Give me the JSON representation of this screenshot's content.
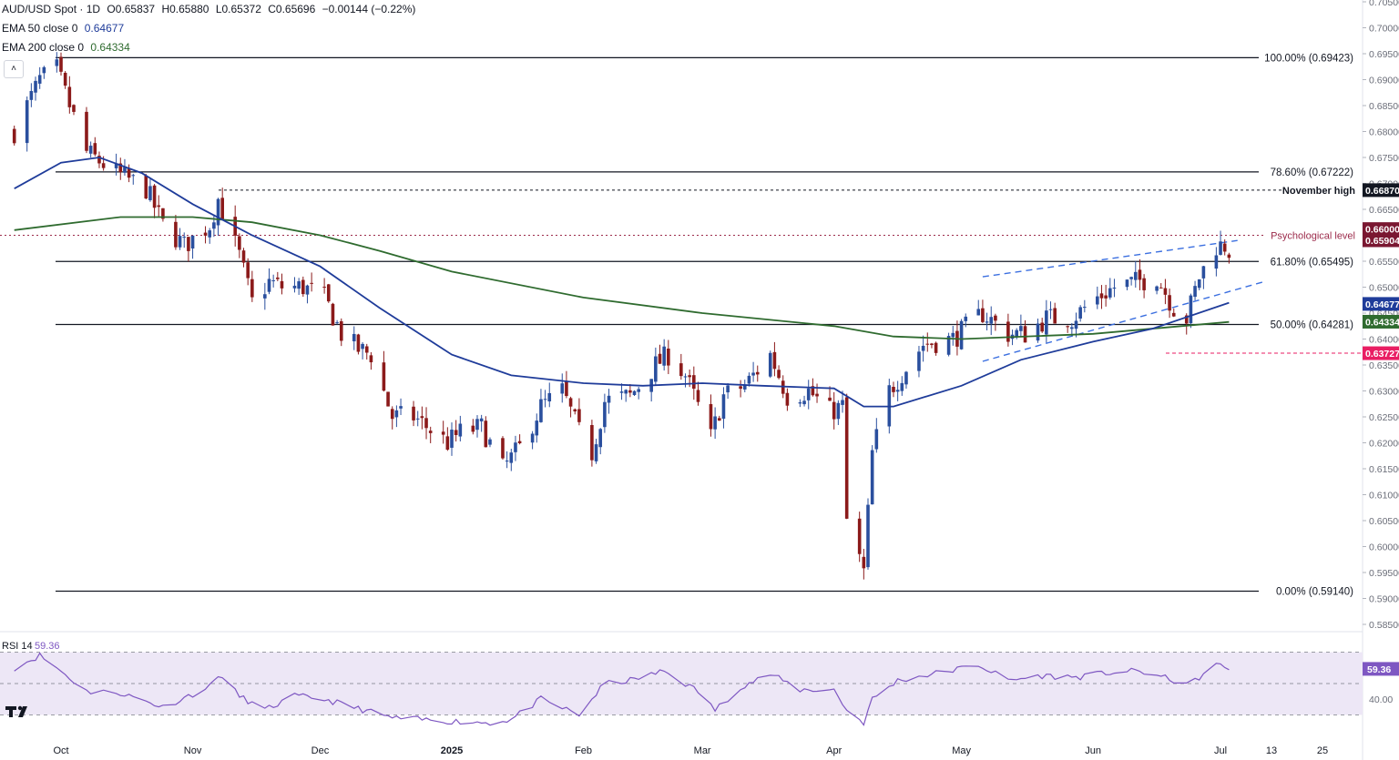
{
  "header": {
    "symbol": "AUD/USD Spot · 1D",
    "open": "O0.65837",
    "high": "H0.65880",
    "low": "L0.65372",
    "close": "C0.65696",
    "change": "−0.00144 (−0.22%)",
    "ema50_label": "EMA 50 close 0",
    "ema50_value": "0.64677",
    "ema200_label": "EMA 200 close 0",
    "ema200_value": "0.64334",
    "collapse_glyph": "˄"
  },
  "colors": {
    "up": "#2a4f9e",
    "down": "#8b1a1a",
    "ema50": "#1f3c9a",
    "ema200": "#2f6b2f",
    "psych": "#9c2b4b",
    "trend": "#3b6fe0",
    "rsi_line": "#7e57c2",
    "rsi_band": "#ede7f6",
    "badge_black": "#131722",
    "badge_maroon": "#7a1731",
    "badge_pink": "#e91e63"
  },
  "icons": {
    "logo": "tradingview-logo-icon"
  },
  "chart_data": {
    "type": "candlestick",
    "ylim": [
      0.585,
      0.705
    ],
    "y_ticks": [
      "0.70500",
      "0.70000",
      "0.69500",
      "0.69000",
      "0.68500",
      "0.68000",
      "0.67500",
      "0.67000",
      "0.66500",
      "0.66000",
      "0.65500",
      "0.65000",
      "0.64500",
      "0.64000",
      "0.63500",
      "0.63000",
      "0.62500",
      "0.62000",
      "0.61500",
      "0.61000",
      "0.60500",
      "0.60000",
      "0.59500",
      "0.59000",
      "0.58500"
    ],
    "x_labels": [
      "Oct",
      "Nov",
      "Dec",
      "2025",
      "Feb",
      "Mar",
      "Apr",
      "May",
      "Jun",
      "Jul",
      "13",
      "25"
    ],
    "fib_levels": [
      {
        "label": "100.00% (0.69423)",
        "value": 0.69423
      },
      {
        "label": "78.60% (0.67222)",
        "value": 0.67222
      },
      {
        "label": "61.80% (0.65495)",
        "value": 0.65495
      },
      {
        "label": "50.00% (0.64281)",
        "value": 0.64281
      },
      {
        "label": "0.00% (0.59140)",
        "value": 0.5914
      }
    ],
    "november_high": {
      "label": "November high",
      "value": 0.6687,
      "badge": "0.66870"
    },
    "psychological_level": {
      "label": "Psychological level",
      "value": 0.66,
      "badge": "0.66000"
    },
    "support_dashed": {
      "value": 0.63727,
      "badge": "0.63727"
    },
    "price_badges": [
      {
        "value": "0.65904",
        "y": 0.65904,
        "color": "maroon"
      },
      {
        "value": "0.64677",
        "y": 0.64677,
        "color": "ema50"
      },
      {
        "value": "0.64334",
        "y": 0.64334,
        "color": "ema200"
      }
    ],
    "channel_upper": [
      {
        "t": "2025-05-06",
        "y": 0.652
      },
      {
        "t": "2025-07-05",
        "y": 0.659
      }
    ],
    "channel_lower": [
      {
        "t": "2025-05-06",
        "y": 0.6357
      },
      {
        "t": "2025-07-11",
        "y": 0.651
      }
    ],
    "price_keypoints": [
      [
        "2024-09-20",
        0.68
      ],
      [
        "2024-09-26",
        0.69
      ],
      [
        "2024-09-30",
        0.692
      ],
      [
        "2024-10-03",
        0.685
      ],
      [
        "2024-10-07",
        0.676
      ],
      [
        "2024-10-14",
        0.672
      ],
      [
        "2024-10-21",
        0.669
      ],
      [
        "2024-10-25",
        0.662
      ],
      [
        "2024-10-30",
        0.658
      ],
      [
        "2024-11-05",
        0.662
      ],
      [
        "2024-11-07",
        0.667
      ],
      [
        "2024-11-12",
        0.656
      ],
      [
        "2024-11-15",
        0.647
      ],
      [
        "2024-11-19",
        0.651
      ],
      [
        "2024-11-22",
        0.65
      ],
      [
        "2024-11-27",
        0.65
      ],
      [
        "2024-12-02",
        0.648
      ],
      [
        "2024-12-06",
        0.641
      ],
      [
        "2024-12-10",
        0.638
      ],
      [
        "2024-12-13",
        0.637
      ],
      [
        "2024-12-18",
        0.625
      ],
      [
        "2024-12-23",
        0.625
      ],
      [
        "2024-12-31",
        0.62
      ],
      [
        "2025-01-03",
        0.622
      ],
      [
        "2025-01-08",
        0.623
      ],
      [
        "2025-01-13",
        0.615
      ],
      [
        "2025-01-17",
        0.619
      ],
      [
        "2025-01-22",
        0.627
      ],
      [
        "2025-01-27",
        0.63
      ],
      [
        "2025-01-31",
        0.622
      ],
      [
        "2025-02-03",
        0.618
      ],
      [
        "2025-02-06",
        0.628
      ],
      [
        "2025-02-12",
        0.629
      ],
      [
        "2025-02-18",
        0.635
      ],
      [
        "2025-02-21",
        0.637
      ],
      [
        "2025-02-25",
        0.633
      ],
      [
        "2025-03-03",
        0.621
      ],
      [
        "2025-03-06",
        0.629
      ],
      [
        "2025-03-11",
        0.631
      ],
      [
        "2025-03-17",
        0.637
      ],
      [
        "2025-03-21",
        0.629
      ],
      [
        "2025-03-26",
        0.63
      ],
      [
        "2025-03-31",
        0.626
      ],
      [
        "2025-04-03",
        0.627
      ],
      [
        "2025-04-04",
        0.605
      ],
      [
        "2025-04-08",
        0.595
      ],
      [
        "2025-04-10",
        0.618
      ],
      [
        "2025-04-14",
        0.63
      ],
      [
        "2025-04-22",
        0.639
      ],
      [
        "2025-04-29",
        0.64
      ],
      [
        "2025-05-06",
        0.645
      ],
      [
        "2025-05-12",
        0.641
      ],
      [
        "2025-05-16",
        0.641
      ],
      [
        "2025-05-21",
        0.644
      ],
      [
        "2025-05-27",
        0.644
      ],
      [
        "2025-06-02",
        0.648
      ],
      [
        "2025-06-06",
        0.65
      ],
      [
        "2025-06-11",
        0.651
      ],
      [
        "2025-06-16",
        0.652
      ],
      [
        "2025-06-20",
        0.646
      ],
      [
        "2025-06-23",
        0.644
      ],
      [
        "2025-06-26",
        0.652
      ],
      [
        "2025-06-30",
        0.658
      ],
      [
        "2025-07-02",
        0.658
      ],
      [
        "2025-07-03",
        0.657
      ]
    ],
    "ema50": [
      [
        "2024-09-20",
        0.669
      ],
      [
        "2024-10-01",
        0.674
      ],
      [
        "2024-10-10",
        0.675
      ],
      [
        "2024-10-20",
        0.672
      ],
      [
        "2024-11-01",
        0.666
      ],
      [
        "2024-11-15",
        0.66
      ],
      [
        "2024-12-01",
        0.654
      ],
      [
        "2024-12-15",
        0.646
      ],
      [
        "2025-01-01",
        0.637
      ],
      [
        "2025-01-15",
        0.633
      ],
      [
        "2025-02-01",
        0.6315
      ],
      [
        "2025-02-15",
        0.631
      ],
      [
        "2025-03-01",
        0.6315
      ],
      [
        "2025-03-15",
        0.631
      ],
      [
        "2025-04-01",
        0.6305
      ],
      [
        "2025-04-08",
        0.627
      ],
      [
        "2025-04-15",
        0.627
      ],
      [
        "2025-05-01",
        0.631
      ],
      [
        "2025-05-15",
        0.636
      ],
      [
        "2025-06-01",
        0.6395
      ],
      [
        "2025-06-15",
        0.642
      ],
      [
        "2025-07-03",
        0.647
      ]
    ],
    "ema200": [
      [
        "2024-09-20",
        0.661
      ],
      [
        "2024-10-15",
        0.6635
      ],
      [
        "2024-11-01",
        0.6635
      ],
      [
        "2024-11-15",
        0.6625
      ],
      [
        "2024-12-01",
        0.66
      ],
      [
        "2024-12-15",
        0.657
      ],
      [
        "2025-01-01",
        0.653
      ],
      [
        "2025-02-01",
        0.648
      ],
      [
        "2025-03-01",
        0.645
      ],
      [
        "2025-04-01",
        0.6425
      ],
      [
        "2025-04-15",
        0.6405
      ],
      [
        "2025-05-01",
        0.64
      ],
      [
        "2025-06-01",
        0.641
      ],
      [
        "2025-07-03",
        0.6433
      ]
    ],
    "rsi": {
      "label": "RSI 14",
      "value": "59.36",
      "tick_label": "40.00",
      "upper": 70,
      "mid": 50,
      "lower": 30,
      "ylim": [
        25,
        75
      ],
      "keypoints": [
        [
          "2024-09-20",
          60
        ],
        [
          "2024-09-26",
          68
        ],
        [
          "2024-10-01",
          58
        ],
        [
          "2024-10-07",
          45
        ],
        [
          "2024-10-15",
          44
        ],
        [
          "2024-10-25",
          35
        ],
        [
          "2024-11-05",
          48
        ],
        [
          "2024-11-07",
          56
        ],
        [
          "2024-11-12",
          42
        ],
        [
          "2024-11-18",
          33
        ],
        [
          "2024-11-25",
          42
        ],
        [
          "2024-12-02",
          40
        ],
        [
          "2024-12-10",
          34
        ],
        [
          "2024-12-18",
          28
        ],
        [
          "2024-12-31",
          26
        ],
        [
          "2025-01-10",
          25
        ],
        [
          "2025-01-15",
          27
        ],
        [
          "2025-01-22",
          40
        ],
        [
          "2025-01-31",
          30
        ],
        [
          "2025-02-06",
          50
        ],
        [
          "2025-02-12",
          52
        ],
        [
          "2025-02-20",
          58
        ],
        [
          "2025-02-28",
          45
        ],
        [
          "2025-03-04",
          33
        ],
        [
          "2025-03-10",
          48
        ],
        [
          "2025-03-17",
          56
        ],
        [
          "2025-03-24",
          46
        ],
        [
          "2025-04-01",
          46
        ],
        [
          "2025-04-04",
          33
        ],
        [
          "2025-04-08",
          25
        ],
        [
          "2025-04-10",
          40
        ],
        [
          "2025-04-16",
          52
        ],
        [
          "2025-04-28",
          58
        ],
        [
          "2025-05-05",
          62
        ],
        [
          "2025-05-12",
          52
        ],
        [
          "2025-05-20",
          55
        ],
        [
          "2025-05-28",
          54
        ],
        [
          "2025-06-05",
          57
        ],
        [
          "2025-06-12",
          58
        ],
        [
          "2025-06-20",
          52
        ],
        [
          "2025-06-24",
          50
        ],
        [
          "2025-06-30",
          62
        ],
        [
          "2025-07-03",
          59.36
        ]
      ]
    }
  }
}
